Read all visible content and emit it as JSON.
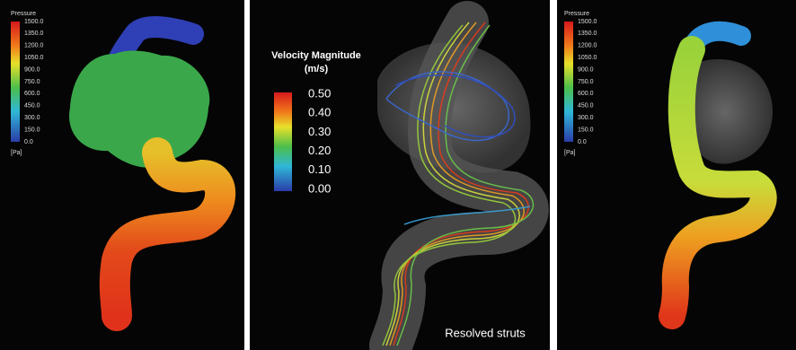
{
  "panels": [
    {
      "legend": {
        "title": "Pressure",
        "ticks": [
          "1500.0",
          "1350.0",
          "1200.0",
          "1050.0",
          "900.0",
          "750.0",
          "600.0",
          "450.0",
          "300.0",
          "150.0",
          "0.0"
        ],
        "unit": "[Pa]"
      }
    },
    {
      "legend": {
        "title": "Velocity Magnitude",
        "unit": "(m/s)",
        "ticks": [
          "0.50",
          "0.40",
          "0.30",
          "0.20",
          "0.10",
          "0.00"
        ]
      },
      "caption": "Resolved struts"
    },
    {
      "legend": {
        "title": "Pressure",
        "ticks": [
          "1500.0",
          "1350.0",
          "1200.0",
          "1050.0",
          "900.0",
          "750.0",
          "600.0",
          "450.0",
          "300.0",
          "150.0",
          "0.0"
        ],
        "unit": "[Pa]"
      }
    }
  ]
}
